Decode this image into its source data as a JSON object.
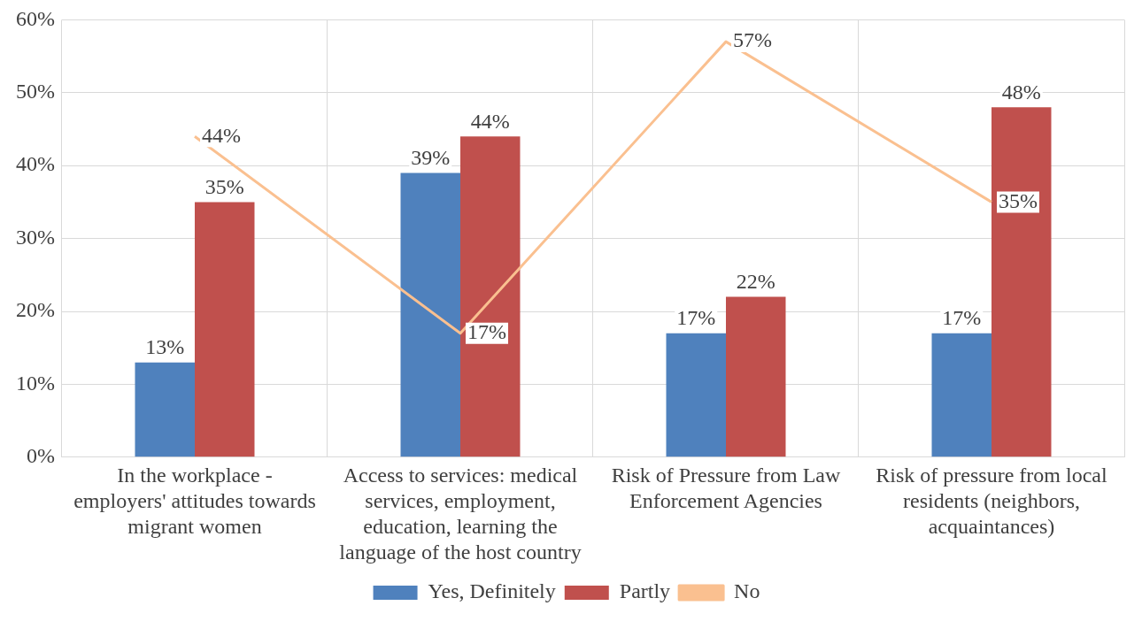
{
  "chart_data": {
    "type": "bar",
    "categories": [
      "In the workplace - employers' attitudes towards migrant women",
      "Access to services: medical services, employment, education, learning the language of the host country",
      "Risk of Pressure from Law Enforcement Agencies",
      "Risk of pressure from local residents (neighbors, acquaintances)"
    ],
    "series": [
      {
        "name": "Yes, Definitely",
        "color": "#4f81bd",
        "values": [
          13,
          39,
          17,
          17
        ],
        "value_labels": [
          "13%",
          "39%",
          "17%",
          "17%"
        ]
      },
      {
        "name": "Partly",
        "color": "#c0504d",
        "values": [
          35,
          44,
          22,
          48
        ],
        "value_labels": [
          "35%",
          "44%",
          "22%",
          "48%"
        ]
      },
      {
        "name": "No",
        "type": "line",
        "color": "#fac090",
        "values": [
          44,
          17,
          57,
          35
        ],
        "value_labels": [
          "44%",
          "17%",
          "57%",
          "35%"
        ]
      }
    ],
    "ylim": [
      0,
      60
    ],
    "yticks": [
      {
        "value": 0,
        "label": "0%"
      },
      {
        "value": 10,
        "label": "10%"
      },
      {
        "value": 20,
        "label": "20%"
      },
      {
        "value": 30,
        "label": "30%"
      },
      {
        "value": 40,
        "label": "40%"
      },
      {
        "value": 50,
        "label": "50%"
      },
      {
        "value": 60,
        "label": "60%"
      }
    ],
    "grid": true,
    "legend": "bottom",
    "marker": "none",
    "line_style": "solid"
  }
}
